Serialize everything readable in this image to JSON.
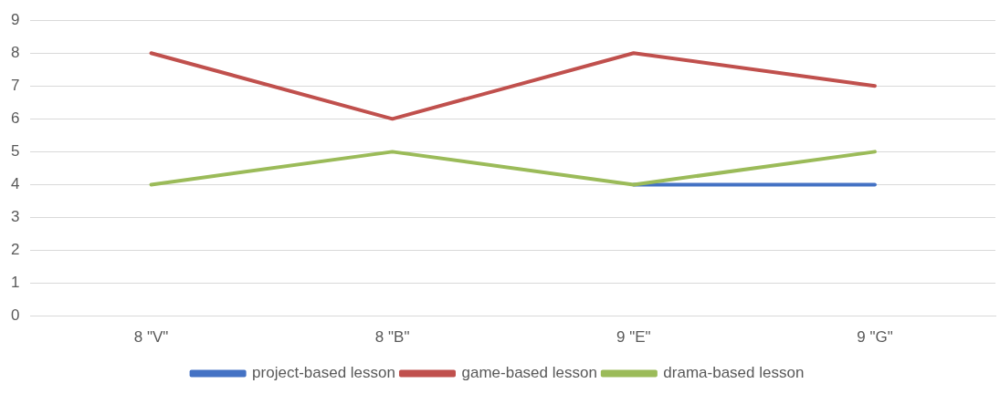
{
  "chart_data": {
    "type": "line",
    "categories": [
      "8 \"V\"",
      "8 \"B\"",
      "9 \"E\"",
      "9 \"G\""
    ],
    "series": [
      {
        "name": "project-based lesson",
        "color": "#4472c4",
        "values": [
          null,
          null,
          4,
          4
        ]
      },
      {
        "name": "game-based lesson",
        "color": "#c0504d",
        "values": [
          8,
          6,
          8,
          7
        ]
      },
      {
        "name": "drama-based lesson",
        "color": "#9bbb59",
        "values": [
          4,
          5,
          4,
          5
        ]
      }
    ],
    "ylim": [
      0,
      9
    ],
    "yticks": [
      0,
      1,
      2,
      3,
      4,
      5,
      6,
      7,
      8,
      9
    ],
    "grid": "y",
    "legend": "bottom",
    "marker": "none",
    "line_style": "solid"
  }
}
